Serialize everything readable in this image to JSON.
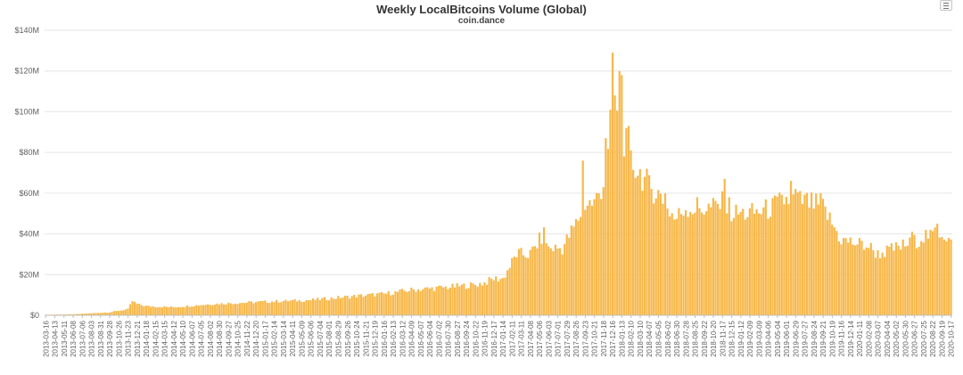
{
  "chart_data": {
    "type": "bar",
    "title": "Weekly LocalBitcoins Volume (Global)",
    "subtitle": "coin.dance",
    "xlabel": "",
    "ylabel": "",
    "ylim": [
      0,
      140
    ],
    "y_unit": "USD millions",
    "y_ticks": [
      "$0",
      "$20M",
      "$40M",
      "$60M",
      "$80M",
      "$100M",
      "$120M",
      "$140M"
    ],
    "bar_color": "#f7b84b",
    "grid": "horizontal",
    "legend": "none",
    "x_tick_labels": [
      "2013-03-16",
      "2013-04-13",
      "2013-05-11",
      "2013-06-08",
      "2013-07-06",
      "2013-08-03",
      "2013-08-31",
      "2013-09-28",
      "2013-10-26",
      "2013-11-23",
      "2013-12-21",
      "2014-01-18",
      "2014-02-15",
      "2014-03-15",
      "2014-04-12",
      "2014-05-10",
      "2014-06-07",
      "2014-07-05",
      "2014-08-02",
      "2014-08-30",
      "2014-09-27",
      "2014-10-25",
      "2014-11-22",
      "2014-12-20",
      "2015-01-17",
      "2015-02-14",
      "2015-03-14",
      "2015-04-11",
      "2015-05-09",
      "2015-06-06",
      "2015-07-04",
      "2015-08-01",
      "2015-08-29",
      "2015-09-26",
      "2015-10-24",
      "2015-11-21",
      "2015-12-19",
      "2016-01-16",
      "2016-02-13",
      "2016-03-12",
      "2016-04-09",
      "2016-05-07",
      "2016-06-04",
      "2016-07-02",
      "2016-07-30",
      "2016-08-27",
      "2016-09-24",
      "2016-10-22",
      "2016-11-19",
      "2016-12-17",
      "2017-01-14",
      "2017-02-11",
      "2017-03-11",
      "2017-04-08",
      "2017-05-06",
      "2017-06-03",
      "2017-07-01",
      "2017-07-29",
      "2017-08-26",
      "2017-09-23",
      "2017-10-21",
      "2017-11-18",
      "2017-12-16",
      "2018-01-13",
      "2018-02-10",
      "2018-03-10",
      "2018-04-07",
      "2018-05-05",
      "2018-06-02",
      "2018-06-30",
      "2018-07-28",
      "2018-08-25",
      "2018-09-22",
      "2018-10-20",
      "2018-11-17",
      "2018-12-15",
      "2019-01-12",
      "2019-02-09",
      "2019-03-09",
      "2019-04-06",
      "2019-05-04",
      "2019-06-01",
      "2019-06-29",
      "2019-07-27",
      "2019-08-24",
      "2019-09-21",
      "2019-10-19",
      "2019-11-16",
      "2019-12-14",
      "2020-01-11",
      "2020-02-08",
      "2020-03-07",
      "2020-04-04",
      "2020-05-02",
      "2020-05-30",
      "2020-06-27",
      "2020-07-25",
      "2020-08-22",
      "2020-09-19",
      "2020-10-17"
    ],
    "start_date": "2013-03-16",
    "anchors": [
      [
        "2013-03-16",
        0.3
      ],
      [
        "2013-06-08",
        0.5
      ],
      [
        "2013-09-28",
        1.5
      ],
      [
        "2013-11-23",
        3
      ],
      [
        "2013-12-07",
        7
      ],
      [
        "2013-12-21",
        5.5
      ],
      [
        "2014-01-18",
        4.5
      ],
      [
        "2014-04-12",
        4
      ],
      [
        "2014-08-02",
        5.5
      ],
      [
        "2014-12-20",
        6.5
      ],
      [
        "2015-06-06",
        7.5
      ],
      [
        "2015-10-24",
        9.5
      ],
      [
        "2016-01-16",
        10.5
      ],
      [
        "2016-04-09",
        12.5
      ],
      [
        "2016-07-02",
        13.5
      ],
      [
        "2016-10-22",
        15
      ],
      [
        "2016-11-19",
        16
      ],
      [
        "2016-12-17",
        18
      ],
      [
        "2017-01-14",
        18
      ],
      [
        "2017-02-25",
        30
      ],
      [
        "2017-04-08",
        30
      ],
      [
        "2017-05-20",
        40
      ],
      [
        "2017-06-03",
        33
      ],
      [
        "2017-07-15",
        33
      ],
      [
        "2017-08-26",
        45
      ],
      [
        "2017-09-23",
        55
      ],
      [
        "2017-10-21",
        55
      ],
      [
        "2017-11-18",
        65
      ],
      [
        "2017-12-16",
        90
      ],
      [
        "2018-01-13",
        100
      ],
      [
        "2018-02-10",
        75
      ],
      [
        "2018-03-10",
        70
      ],
      [
        "2018-04-07",
        63
      ],
      [
        "2018-05-05",
        60
      ],
      [
        "2018-06-02",
        52
      ],
      [
        "2018-06-30",
        48
      ],
      [
        "2018-07-28",
        53
      ],
      [
        "2018-08-25",
        52
      ],
      [
        "2018-10-20",
        53
      ],
      [
        "2018-11-17",
        55
      ],
      [
        "2018-12-15",
        50
      ],
      [
        "2019-02-09",
        50
      ],
      [
        "2019-04-06",
        52
      ],
      [
        "2019-06-01",
        57
      ],
      [
        "2019-07-27",
        56
      ],
      [
        "2019-09-21",
        53
      ],
      [
        "2019-11-16",
        37
      ],
      [
        "2020-02-08",
        34
      ],
      [
        "2020-03-07",
        30
      ],
      [
        "2020-05-02",
        33
      ],
      [
        "2020-06-27",
        36
      ],
      [
        "2020-07-25",
        39
      ],
      [
        "2020-09-19",
        41
      ],
      [
        "2020-10-17",
        36
      ]
    ],
    "spikes": [
      [
        "2017-09-16",
        76
      ],
      [
        "2017-11-25",
        87
      ],
      [
        "2017-12-09",
        101
      ],
      [
        "2017-12-16",
        129
      ],
      [
        "2017-12-23",
        108
      ],
      [
        "2018-01-06",
        120
      ],
      [
        "2018-01-13",
        118
      ],
      [
        "2018-01-20",
        78
      ],
      [
        "2018-01-27",
        92
      ],
      [
        "2018-02-03",
        93
      ],
      [
        "2018-03-31",
        72
      ],
      [
        "2018-05-26",
        60
      ],
      [
        "2018-06-23",
        47
      ],
      [
        "2018-09-01",
        58
      ],
      [
        "2018-11-24",
        67
      ],
      [
        "2018-12-08",
        58
      ],
      [
        "2019-06-15",
        66
      ],
      [
        "2019-06-29",
        62
      ],
      [
        "2019-09-14",
        60
      ],
      [
        "2020-03-14",
        28
      ],
      [
        "2020-06-20",
        41
      ],
      [
        "2020-08-15",
        42
      ],
      [
        "2020-09-05",
        45
      ],
      [
        "2020-10-10",
        38
      ]
    ]
  }
}
